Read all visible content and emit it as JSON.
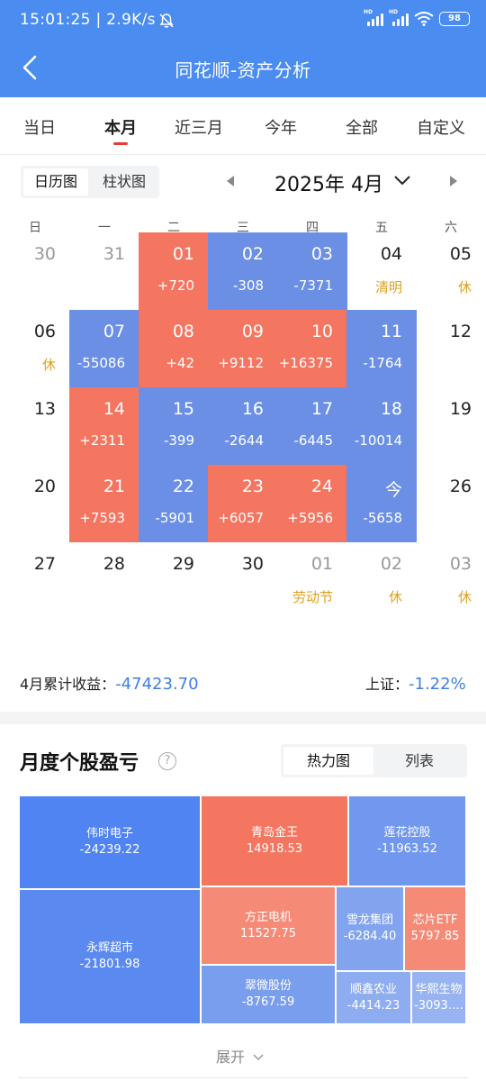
{
  "status_bar": {
    "time": "15:01:25 | 2.9K/s",
    "battery": "98"
  },
  "nav": {
    "title": "同花顺-资产分析"
  },
  "period_tabs": [
    "当日",
    "本月",
    "近三月",
    "今年",
    "全部",
    "自定义"
  ],
  "view_toggle": [
    "日历图",
    "柱状图"
  ],
  "month_label": "2025年 4月",
  "weekdays": [
    "日",
    "一",
    "二",
    "三",
    "四",
    "五",
    "六"
  ],
  "calendar": [
    [
      {
        "d": "30",
        "state": "grey"
      },
      {
        "d": "31",
        "state": "grey"
      },
      {
        "d": "01",
        "v": "+720",
        "state": "red"
      },
      {
        "d": "02",
        "v": "-308",
        "state": "blue"
      },
      {
        "d": "03",
        "v": "-7371",
        "state": "blue"
      },
      {
        "d": "04",
        "h": "清明",
        "state": "plain"
      },
      {
        "d": "05",
        "h": "休",
        "state": "plain"
      }
    ],
    [
      {
        "d": "06",
        "h": "休",
        "state": "plain"
      },
      {
        "d": "07",
        "v": "-55086",
        "state": "blue"
      },
      {
        "d": "08",
        "v": "+42",
        "state": "red"
      },
      {
        "d": "09",
        "v": "+9112",
        "state": "red"
      },
      {
        "d": "10",
        "v": "+16375",
        "state": "red"
      },
      {
        "d": "11",
        "v": "-1764",
        "state": "blue"
      },
      {
        "d": "12",
        "state": "plain"
      }
    ],
    [
      {
        "d": "13",
        "state": "plain"
      },
      {
        "d": "14",
        "v": "+2311",
        "state": "red"
      },
      {
        "d": "15",
        "v": "-399",
        "state": "blue"
      },
      {
        "d": "16",
        "v": "-2644",
        "state": "blue"
      },
      {
        "d": "17",
        "v": "-6445",
        "state": "blue"
      },
      {
        "d": "18",
        "v": "-10014",
        "state": "blue"
      },
      {
        "d": "19",
        "state": "plain"
      }
    ],
    [
      {
        "d": "20",
        "state": "plain"
      },
      {
        "d": "21",
        "v": "+7593",
        "state": "red"
      },
      {
        "d": "22",
        "v": "-5901",
        "state": "blue"
      },
      {
        "d": "23",
        "v": "+6057",
        "state": "red"
      },
      {
        "d": "24",
        "v": "+5956",
        "state": "red"
      },
      {
        "d": "今",
        "v": "-5658",
        "state": "blue"
      },
      {
        "d": "26",
        "state": "plain"
      }
    ],
    [
      {
        "d": "27",
        "state": "plain"
      },
      {
        "d": "28",
        "state": "plain"
      },
      {
        "d": "29",
        "state": "plain"
      },
      {
        "d": "30",
        "state": "plain"
      },
      {
        "d": "01",
        "h": "劳动节",
        "state": "grey"
      },
      {
        "d": "02",
        "h": "休",
        "state": "grey"
      },
      {
        "d": "03",
        "h": "休",
        "state": "grey"
      }
    ]
  ],
  "summary": {
    "month_label": "4月累计收益：",
    "month_value": "-47423.70",
    "index_label": "上证：",
    "index_value": "-1.22%"
  },
  "section": {
    "title": "月度个股盈亏",
    "help": "?"
  },
  "heatmap_toggle": [
    "热力图",
    "列表"
  ],
  "heatmap": [
    {
      "name": "伟时电子",
      "value": "-24239.22",
      "color": "#4f84f2"
    },
    {
      "name": "永辉超市",
      "value": "-21801.98",
      "color": "#5a8af0"
    },
    {
      "name": "青岛金王",
      "value": "14918.53",
      "color": "#f47560"
    },
    {
      "name": "方正电机",
      "value": "11527.75",
      "color": "#f58a76"
    },
    {
      "name": "莲花控股",
      "value": "-11963.52",
      "color": "#7198ee"
    },
    {
      "name": "翠微股份",
      "value": "-8767.59",
      "color": "#7a9eee"
    },
    {
      "name": "雪龙集团",
      "value": "-6284.40",
      "color": "#82a4ef"
    },
    {
      "name": "芯片ETF",
      "value": "5797.85",
      "color": "#f58a76"
    },
    {
      "name": "顺鑫农业",
      "value": "-4414.23",
      "color": "#8eacf0"
    },
    {
      "name": "华熙生物",
      "value": "-3093.…",
      "color": "#97b3f1"
    }
  ],
  "expand_label": "展开"
}
